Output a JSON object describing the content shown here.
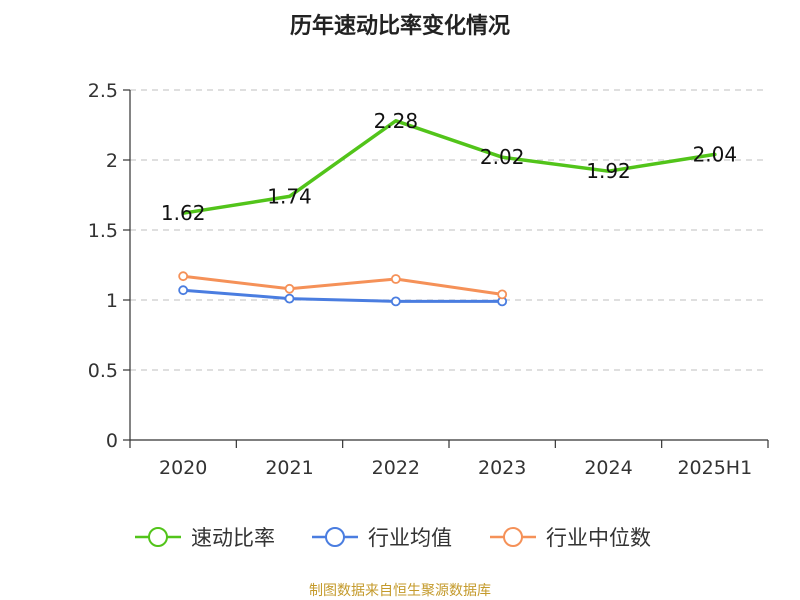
{
  "chart_data": {
    "type": "line",
    "title": "历年速动比率变化情况",
    "categories": [
      "2020",
      "2021",
      "2022",
      "2023",
      "2024",
      "2025H1"
    ],
    "ylim": [
      0,
      2.5
    ],
    "yticks": [
      "0",
      "0.5",
      "1",
      "1.5",
      "2",
      "2.5"
    ],
    "grid": true,
    "legend_position": "bottom",
    "series": [
      {
        "name": "速动比率",
        "color": "#52c41a",
        "values": [
          1.62,
          1.74,
          2.28,
          2.02,
          1.92,
          2.04
        ],
        "labels": [
          "1.62",
          "1.74",
          "2.28",
          "2.02",
          "1.92",
          "2.04"
        ],
        "show_markers": false
      },
      {
        "name": "行业均值",
        "color": "#4a7de0",
        "values": [
          1.07,
          1.01,
          0.99,
          0.99,
          null,
          null
        ],
        "show_markers": true
      },
      {
        "name": "行业中位数",
        "color": "#f59158",
        "values": [
          1.17,
          1.08,
          1.15,
          1.04,
          null,
          null
        ],
        "show_markers": true
      }
    ],
    "source": "制图数据来自恒生聚源数据库"
  }
}
